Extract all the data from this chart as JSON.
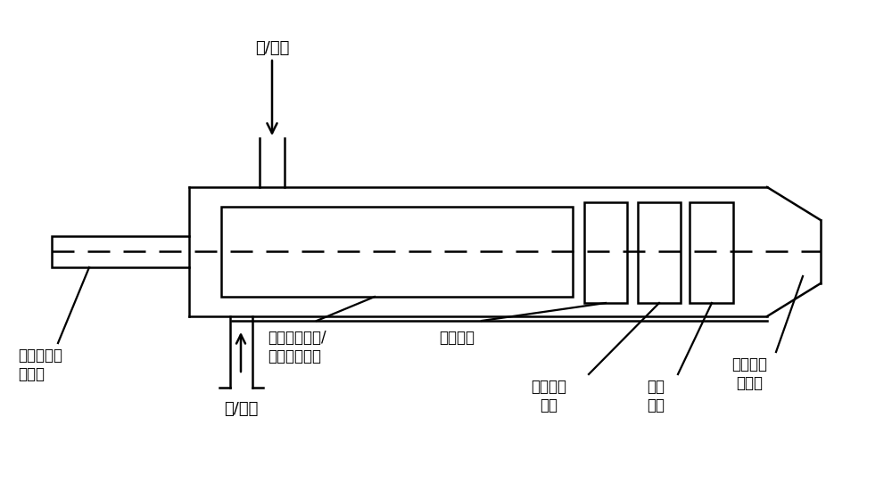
{
  "bg_color": "#ffffff",
  "line_color": "#000000",
  "figsize": [
    10.0,
    5.6
  ],
  "dpi": 100,
  "labels": {
    "top_arrow": "风/煤粉",
    "bottom_arrow": "风/煤粉",
    "label1": "激光能量输\n送管路",
    "label2": "同轴嵌套的风/\n煤粉输送结构",
    "label3": "防回火管",
    "label4": "激光预热\n点火",
    "label5": "强化\n燃烧",
    "label6": "可变径矢\n量嘴嘴"
  }
}
